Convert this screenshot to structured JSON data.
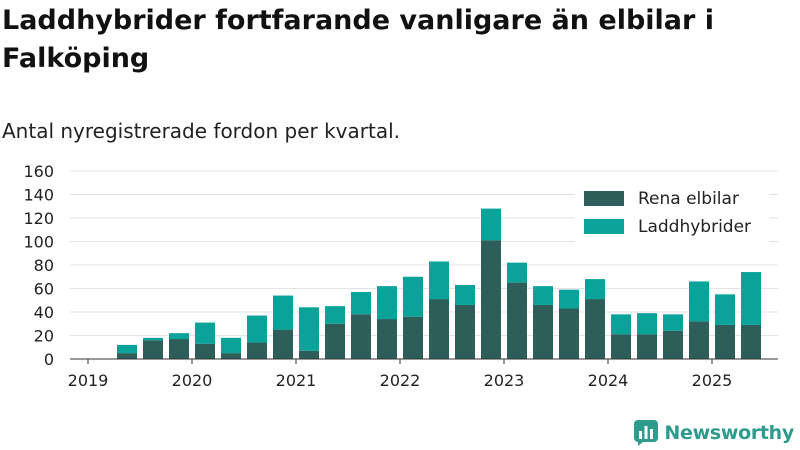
{
  "title": "Laddhybrider fortfarande vanligare än elbilar i Falköping",
  "subtitle": "Antal nyregistrerade fordon per kvartal.",
  "brand": {
    "name": "Newsworthy",
    "icon": "bar-chart-logo-icon",
    "color": "#2d9c8d"
  },
  "chart_data": {
    "type": "bar",
    "stacked": true,
    "title": "Laddhybrider fortfarande vanligare än elbilar i Falköping",
    "subtitle": "Antal nyregistrerade fordon per kvartal.",
    "xlabel": "",
    "ylabel": "",
    "ylim": [
      0,
      160
    ],
    "yticks": [
      "0",
      "20",
      "40",
      "60",
      "80",
      "100",
      "120",
      "140",
      "160"
    ],
    "xticks": [
      "2019",
      "2020",
      "2021",
      "2022",
      "2023",
      "2024",
      "2025"
    ],
    "grid": "horizontal",
    "legend_position": "top-right",
    "categories": [
      "2019 Q2",
      "2019 Q3",
      "2019 Q4",
      "2020 Q1",
      "2020 Q2",
      "2020 Q3",
      "2020 Q4",
      "2021 Q1",
      "2021 Q2",
      "2021 Q3",
      "2021 Q4",
      "2022 Q1",
      "2022 Q2",
      "2022 Q3",
      "2022 Q4",
      "2023 Q1",
      "2023 Q2",
      "2023 Q3",
      "2023 Q4",
      "2024 Q1",
      "2024 Q2",
      "2024 Q3",
      "2024 Q4",
      "2025 Q1",
      "2025 Q2"
    ],
    "series": [
      {
        "name": "Rena elbilar",
        "color": "#2e5e59",
        "values": [
          5,
          16,
          17,
          13,
          5,
          14,
          25,
          7,
          30,
          38,
          34,
          36,
          51,
          46,
          101,
          65,
          46,
          43,
          51,
          21,
          21,
          24,
          32,
          29,
          29
        ]
      },
      {
        "name": "Laddhybrider",
        "color": "#09a39a",
        "values": [
          7,
          2,
          5,
          18,
          13,
          23,
          29,
          37,
          15,
          19,
          28,
          34,
          32,
          17,
          27,
          17,
          16,
          16,
          17,
          17,
          18,
          14,
          34,
          26,
          45
        ]
      }
    ]
  }
}
